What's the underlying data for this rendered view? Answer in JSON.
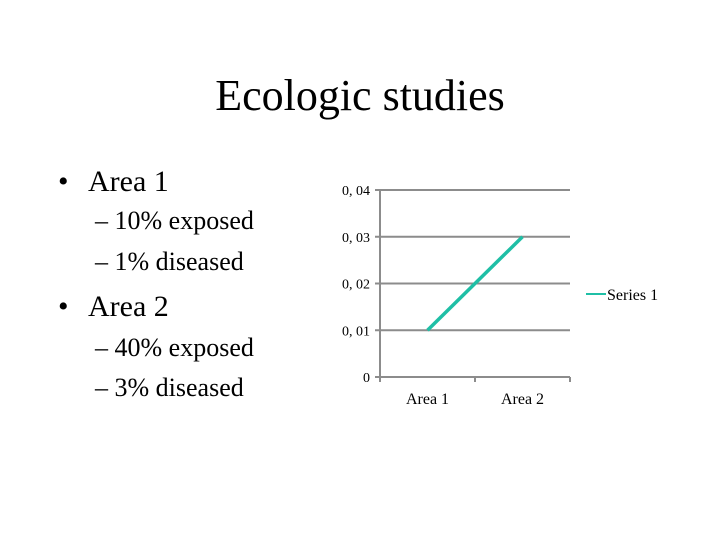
{
  "slide": {
    "title": "Ecologic studies",
    "bullets": [
      {
        "label": "Area 1",
        "subitems": [
          "10% exposed",
          "1% diseased"
        ]
      },
      {
        "label": "Area 2",
        "subitems": [
          "40% exposed",
          "3% diseased"
        ]
      }
    ],
    "bullet_glyph": "•",
    "sub_glyph": "–"
  },
  "chart_data": {
    "type": "line",
    "categories": [
      "Area 1",
      "Area 2"
    ],
    "series": [
      {
        "name": "Series 1",
        "values": [
          0.01,
          0.03
        ],
        "color": "#1fbfa6"
      }
    ],
    "ylim": [
      0,
      0.04
    ],
    "yticks": [
      0,
      0.01,
      0.02,
      0.03,
      0.04
    ],
    "ytick_labels": [
      "0",
      "0, 01",
      "0, 02",
      "0, 03",
      "0, 04"
    ],
    "grid": true,
    "legend": "right",
    "gridline_color": "#8c8c8c"
  }
}
